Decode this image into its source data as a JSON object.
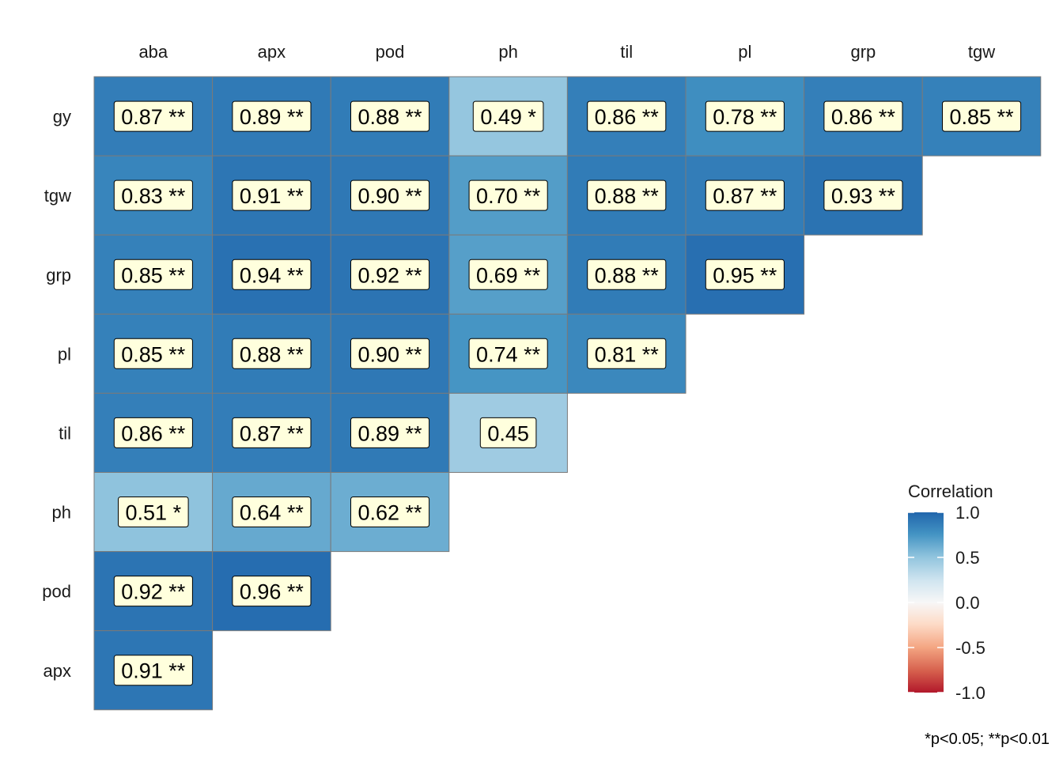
{
  "chart_data": {
    "type": "heatmap",
    "columns": [
      "aba",
      "apx",
      "pod",
      "ph",
      "til",
      "pl",
      "grp",
      "tgw"
    ],
    "rows": [
      "gy",
      "tgw",
      "grp",
      "pl",
      "til",
      "ph",
      "pod",
      "apx"
    ],
    "cells": [
      [
        {
          "value": 0.87,
          "sig": "**"
        },
        {
          "value": 0.89,
          "sig": "**"
        },
        {
          "value": 0.88,
          "sig": "**"
        },
        {
          "value": 0.49,
          "sig": "*"
        },
        {
          "value": 0.86,
          "sig": "**"
        },
        {
          "value": 0.78,
          "sig": "**"
        },
        {
          "value": 0.86,
          "sig": "**"
        },
        {
          "value": 0.85,
          "sig": "**"
        }
      ],
      [
        {
          "value": 0.83,
          "sig": "**"
        },
        {
          "value": 0.91,
          "sig": "**"
        },
        {
          "value": 0.9,
          "sig": "**"
        },
        {
          "value": 0.7,
          "sig": "**"
        },
        {
          "value": 0.88,
          "sig": "**"
        },
        {
          "value": 0.87,
          "sig": "**"
        },
        {
          "value": 0.93,
          "sig": "**"
        },
        null
      ],
      [
        {
          "value": 0.85,
          "sig": "**"
        },
        {
          "value": 0.94,
          "sig": "**"
        },
        {
          "value": 0.92,
          "sig": "**"
        },
        {
          "value": 0.69,
          "sig": "**"
        },
        {
          "value": 0.88,
          "sig": "**"
        },
        {
          "value": 0.95,
          "sig": "**"
        },
        null,
        null
      ],
      [
        {
          "value": 0.85,
          "sig": "**"
        },
        {
          "value": 0.88,
          "sig": "**"
        },
        {
          "value": 0.9,
          "sig": "**"
        },
        {
          "value": 0.74,
          "sig": "**"
        },
        {
          "value": 0.81,
          "sig": "**"
        },
        null,
        null,
        null
      ],
      [
        {
          "value": 0.86,
          "sig": "**"
        },
        {
          "value": 0.87,
          "sig": "**"
        },
        {
          "value": 0.89,
          "sig": "**"
        },
        {
          "value": 0.45,
          "sig": ""
        },
        null,
        null,
        null,
        null
      ],
      [
        {
          "value": 0.51,
          "sig": "*"
        },
        {
          "value": 0.64,
          "sig": "**"
        },
        {
          "value": 0.62,
          "sig": "**"
        },
        null,
        null,
        null,
        null,
        null
      ],
      [
        {
          "value": 0.92,
          "sig": "**"
        },
        {
          "value": 0.96,
          "sig": "**"
        },
        null,
        null,
        null,
        null,
        null,
        null
      ],
      [
        {
          "value": 0.91,
          "sig": "**"
        },
        null,
        null,
        null,
        null,
        null,
        null,
        null
      ]
    ],
    "legend": {
      "title": "Correlation",
      "ticks": [
        "1.0",
        "0.5",
        "0.0",
        "-0.5",
        "-1.0"
      ],
      "tick_values": [
        1.0,
        0.5,
        0.0,
        -0.5,
        -1.0
      ],
      "range": [
        -1.0,
        1.0
      ],
      "colors": {
        "low": "#c6242e",
        "mid_low": "#f4a582",
        "mid": "#f7f7f7",
        "mid_high": "#92c5de",
        "high": "#2166ac"
      }
    },
    "footnote": "*p<0.05; **p<0.01",
    "label_fill": "#ffffdd",
    "cell_border": "#7a7a7a"
  }
}
